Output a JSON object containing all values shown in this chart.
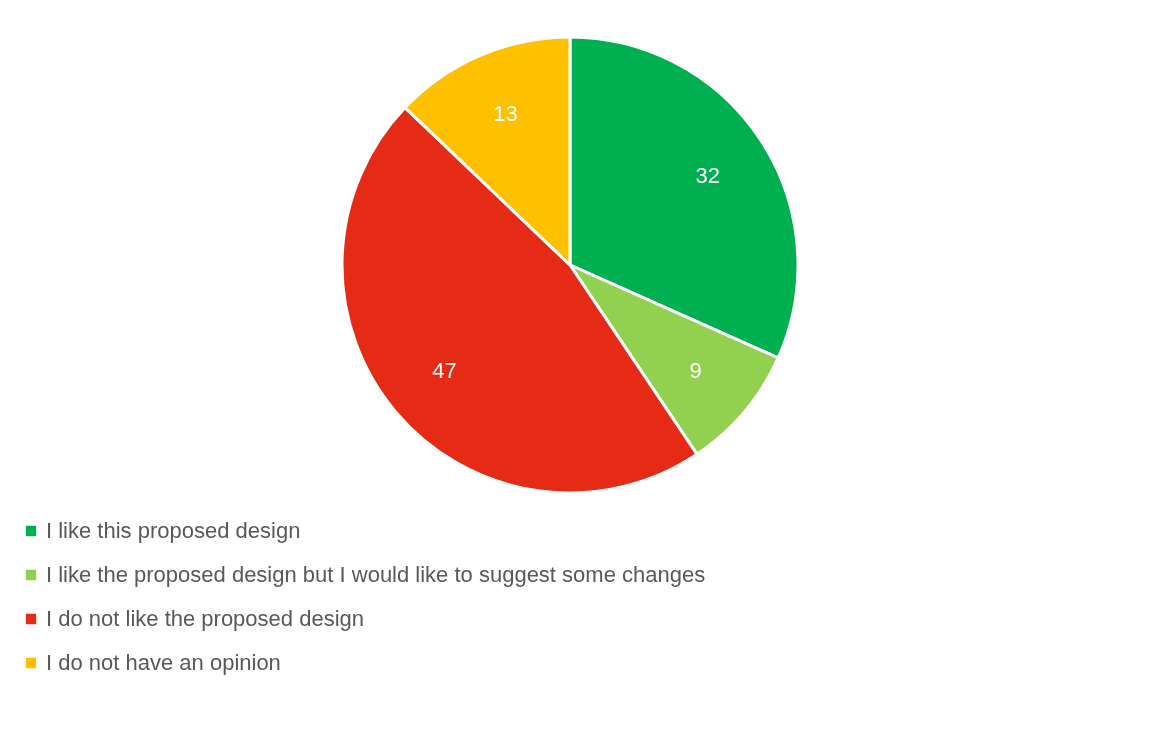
{
  "chart_data": {
    "type": "pie",
    "categories": [
      "I like this proposed design",
      "I like the proposed design but I would like to suggest some changes",
      "I do not like the proposed design",
      "I do not have an opinion"
    ],
    "values": [
      32,
      9,
      47,
      13
    ],
    "colors": [
      "#00b050",
      "#92d050",
      "#e52a16",
      "#ffc000"
    ],
    "data_labels": true,
    "legend": "bottom"
  }
}
